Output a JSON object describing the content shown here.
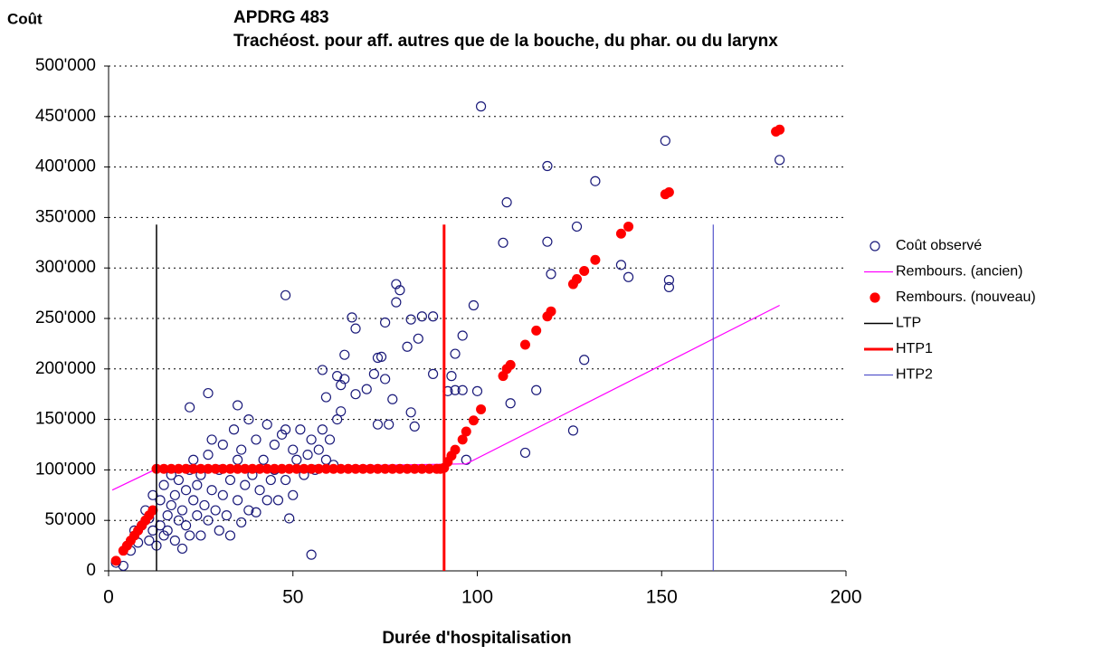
{
  "chart_data": {
    "type": "scatter",
    "title": "APDRG 483",
    "subtitle": "Trachéost. pour aff. autres que de la bouche, du phar. ou du larynx",
    "y_label": "Coût",
    "x_label": "Durée d'hospitalisation",
    "xlim": [
      0,
      200
    ],
    "xticks": [
      0,
      50,
      100,
      150,
      200
    ],
    "ylim": [
      0,
      500000
    ],
    "yticks": [
      {
        "value": 0,
        "label": "0"
      },
      {
        "value": 50000,
        "label": "50'000"
      },
      {
        "value": 100000,
        "label": "100'000"
      },
      {
        "value": 150000,
        "label": "150'000"
      },
      {
        "value": 200000,
        "label": "200'000"
      },
      {
        "value": 250000,
        "label": "250'000"
      },
      {
        "value": 300000,
        "label": "300'000"
      },
      {
        "value": 350000,
        "label": "350'000"
      },
      {
        "value": 400000,
        "label": "400'000"
      },
      {
        "value": 450000,
        "label": "450'000"
      },
      {
        "value": 500000,
        "label": "500'000"
      }
    ],
    "grid": true,
    "legend": "right",
    "series": [
      {
        "name": "Coût observé",
        "color": "#1a1a7a",
        "mode": "markers",
        "marker": "open",
        "x": [
          2,
          4,
          6,
          7,
          8,
          9,
          10,
          11,
          11,
          12,
          12,
          13,
          14,
          14,
          15,
          15,
          16,
          16,
          17,
          17,
          18,
          18,
          19,
          19,
          20,
          20,
          21,
          21,
          22,
          22,
          23,
          23,
          24,
          24,
          25,
          25,
          26,
          27,
          27,
          28,
          28,
          29,
          30,
          30,
          31,
          31,
          32,
          33,
          33,
          34,
          35,
          35,
          36,
          36,
          37,
          38,
          38,
          39,
          40,
          40,
          41,
          42,
          43,
          43,
          44,
          45,
          45,
          46,
          47,
          48,
          48,
          49,
          50,
          50,
          51,
          52,
          53,
          54,
          55,
          55,
          56,
          57,
          58,
          59,
          60,
          61,
          62,
          62,
          63,
          63,
          64,
          64,
          66,
          67,
          67,
          70,
          72,
          73,
          73,
          74,
          75,
          75,
          76,
          77,
          78,
          78,
          79,
          81,
          82,
          82,
          83,
          84,
          85,
          88,
          88,
          92,
          93,
          94,
          94,
          96,
          96,
          97,
          99,
          100,
          101,
          107,
          108,
          109,
          113,
          116,
          119,
          119,
          120,
          126,
          127,
          129,
          132,
          139,
          141,
          151,
          152,
          152,
          182,
          22,
          27,
          35,
          48,
          58,
          59
        ],
        "values": [
          8000,
          5000,
          20000,
          40000,
          28000,
          45000,
          60000,
          30000,
          52000,
          40000,
          75000,
          25000,
          45000,
          70000,
          35000,
          85000,
          55000,
          40000,
          65000,
          95000,
          30000,
          75000,
          50000,
          90000,
          22000,
          60000,
          80000,
          45000,
          100000,
          35000,
          70000,
          110000,
          55000,
          85000,
          35000,
          95000,
          65000,
          115000,
          50000,
          80000,
          130000,
          60000,
          40000,
          100000,
          75000,
          125000,
          55000,
          35000,
          90000,
          140000,
          70000,
          110000,
          48000,
          120000,
          85000,
          60000,
          150000,
          95000,
          58000,
          130000,
          80000,
          110000,
          70000,
          145000,
          90000,
          125000,
          100000,
          70000,
          135000,
          140000,
          90000,
          52000,
          75000,
          120000,
          110000,
          140000,
          95000,
          115000,
          16000,
          130000,
          100000,
          120000,
          140000,
          110000,
          130000,
          105000,
          150000,
          193000,
          184000,
          158000,
          214000,
          190000,
          251000,
          240000,
          175000,
          180000,
          195000,
          211000,
          145000,
          212000,
          246000,
          190000,
          145000,
          170000,
          284000,
          266000,
          278000,
          222000,
          249000,
          157000,
          143000,
          230000,
          252000,
          195000,
          252000,
          178000,
          193000,
          215000,
          179000,
          233000,
          179000,
          110000,
          263000,
          178000,
          460000,
          325000,
          365000,
          166000,
          117000,
          179000,
          401000,
          326000,
          294000,
          139000,
          341000,
          209000,
          386000,
          303000,
          291000,
          426000,
          288000,
          281000,
          407000,
          162000,
          176000,
          164000,
          273000,
          199000,
          172000
        ]
      },
      {
        "name": "Rembours. (ancien)",
        "color": "#ff00ff",
        "mode": "lines",
        "width": 1.2,
        "x": [
          1,
          13,
          97,
          182
        ],
        "values": [
          80000,
          101000,
          106000,
          263000
        ]
      },
      {
        "name": "Rembours. (nouveau)",
        "color": "#ff0000",
        "mode": "markers",
        "marker": "filled",
        "x": [
          2,
          4,
          5,
          6,
          7,
          8,
          9,
          10,
          11,
          12,
          13,
          15,
          17,
          19,
          21,
          23,
          25,
          27,
          29,
          31,
          33,
          35,
          37,
          39,
          41,
          43,
          45,
          47,
          49,
          51,
          53,
          55,
          57,
          59,
          61,
          63,
          65,
          67,
          69,
          71,
          73,
          75,
          77,
          79,
          81,
          83,
          85,
          87,
          89,
          90,
          91,
          92,
          93,
          94,
          96,
          97,
          99,
          101,
          107,
          108,
          109,
          113,
          116,
          119,
          120,
          126,
          127,
          129,
          132,
          139,
          141,
          151,
          152,
          181,
          182
        ],
        "values": [
          10000,
          20000,
          25000,
          30000,
          35000,
          40000,
          45000,
          50000,
          55000,
          60000,
          101000,
          101000,
          101000,
          101000,
          101000,
          101000,
          101000,
          101000,
          101000,
          101000,
          101000,
          101000,
          101000,
          101000,
          101000,
          101000,
          101000,
          101000,
          101000,
          101000,
          101000,
          101000,
          101000,
          101000,
          101000,
          101000,
          101000,
          101000,
          101000,
          101000,
          101000,
          101000,
          101000,
          101000,
          101000,
          101000,
          101000,
          101000,
          101000,
          101000,
          102000,
          108000,
          114000,
          120000,
          130000,
          138000,
          149000,
          160000,
          193000,
          200000,
          204000,
          224000,
          238000,
          252000,
          257000,
          284000,
          289000,
          297000,
          308000,
          334000,
          341000,
          373000,
          375000,
          435000,
          437000
        ]
      },
      {
        "name": "LTP",
        "color": "#000000",
        "mode": "lines",
        "width": 1.5,
        "x": [
          13,
          13
        ],
        "values": [
          0,
          343000
        ]
      },
      {
        "name": "HTP1",
        "color": "#ff0000",
        "mode": "lines",
        "width": 3,
        "x": [
          91,
          91
        ],
        "values": [
          0,
          343000
        ]
      },
      {
        "name": "HTP2",
        "color": "#5555cc",
        "mode": "lines",
        "width": 1.2,
        "x": [
          164,
          164
        ],
        "values": [
          0,
          343000
        ]
      }
    ]
  }
}
